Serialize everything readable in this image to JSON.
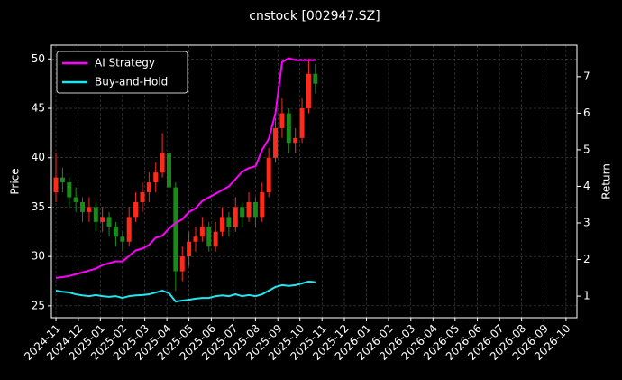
{
  "chart_data": {
    "type": "candlestick",
    "title": "cnstock [002947.SZ]",
    "ylabel": "Price",
    "y2label": "Return",
    "x": [
      2024.833,
      2024.858,
      2024.883,
      2024.908,
      2024.933,
      2024.958,
      2024.983,
      2025.008,
      2025.033,
      2025.058,
      2025.083,
      2025.108,
      2025.133,
      2025.158,
      2025.183,
      2025.208,
      2025.233,
      2025.258,
      2025.283,
      2025.308,
      2025.333,
      2025.358,
      2025.383,
      2025.408,
      2025.433,
      2025.458,
      2025.483,
      2025.508,
      2025.533,
      2025.558,
      2025.583,
      2025.608,
      2025.633,
      2025.658,
      2025.683,
      2025.708,
      2025.733,
      2025.758,
      2025.783,
      2025.808
    ],
    "open": [
      36.5,
      38,
      37.5,
      36,
      35.5,
      34.5,
      35,
      33.5,
      34,
      33,
      32,
      31.5,
      34,
      35.5,
      36.5,
      37.5,
      38.5,
      40.5,
      37,
      28.5,
      30,
      31.5,
      32,
      33,
      31,
      32.5,
      34,
      33,
      35,
      34,
      35.5,
      34,
      36.5,
      40,
      43,
      44.5,
      41.5,
      42,
      45,
      48.5
    ],
    "high": [
      40.5,
      39,
      38,
      37,
      36,
      36,
      35.5,
      35,
      34.5,
      33.5,
      32.5,
      35,
      36.5,
      37.5,
      38.5,
      39.5,
      42.5,
      41,
      37.5,
      31,
      32.5,
      33,
      34,
      33.5,
      33.5,
      35,
      34.5,
      36,
      35.5,
      36.5,
      36,
      37.5,
      41,
      44,
      46,
      45,
      43,
      46,
      50,
      49.5
    ],
    "low": [
      35.5,
      36.5,
      35,
      34.5,
      33.5,
      33.5,
      32.5,
      32.5,
      32,
      31,
      30.5,
      31,
      33.5,
      34.5,
      35.5,
      36.5,
      38,
      35.5,
      26.5,
      27.5,
      29,
      30.5,
      31.5,
      30.5,
      30.5,
      32,
      32,
      32.5,
      33,
      33.5,
      33,
      33.5,
      36,
      39.5,
      42,
      40.5,
      40.5,
      41.5,
      44.5,
      46.5
    ],
    "close": [
      38,
      37.5,
      36,
      35.5,
      34.5,
      35,
      33.5,
      34,
      33,
      32,
      31.5,
      34,
      35.5,
      36.5,
      37.5,
      38.5,
      40.5,
      37,
      28.5,
      30,
      31.5,
      32,
      33,
      31,
      32.5,
      34,
      33,
      35,
      34,
      35.5,
      34,
      36.5,
      40,
      43,
      44.5,
      41.5,
      42,
      45,
      48.5,
      47.5
    ],
    "up_color": "#ff2a1a",
    "down_color": "#1a8a1a",
    "series": [
      {
        "name": "AI Strategy",
        "color": "#ff00ff",
        "axis": "y2",
        "values": [
          1.5,
          1.52,
          1.55,
          1.6,
          1.65,
          1.7,
          1.75,
          1.85,
          1.9,
          1.95,
          1.95,
          2.1,
          2.25,
          2.3,
          2.4,
          2.6,
          2.65,
          2.85,
          3.0,
          3.1,
          3.3,
          3.4,
          3.6,
          3.7,
          3.8,
          3.9,
          4.0,
          4.2,
          4.4,
          4.5,
          4.55,
          5.0,
          5.3,
          6.0,
          7.4,
          7.5,
          7.45,
          7.45,
          7.45,
          7.45
        ]
      },
      {
        "name": "Buy-and-Hold",
        "color": "#22e5f0",
        "axis": "y2",
        "values": [
          1.15,
          1.12,
          1.1,
          1.05,
          1.02,
          1.0,
          1.03,
          1.0,
          0.98,
          1.0,
          0.95,
          1.0,
          1.02,
          1.03,
          1.05,
          1.1,
          1.15,
          1.08,
          0.85,
          0.88,
          0.9,
          0.93,
          0.95,
          0.95,
          1.0,
          1.02,
          1.0,
          1.05,
          1.0,
          1.03,
          1.0,
          1.05,
          1.15,
          1.25,
          1.3,
          1.28,
          1.3,
          1.35,
          1.4,
          1.38
        ]
      }
    ],
    "xlim": [
      2024.816,
      2026.791
    ],
    "ylim": [
      23.8,
      51.4
    ],
    "y2lim": [
      0.41,
      7.86
    ],
    "yticks": [
      25,
      30,
      35,
      40,
      45,
      50
    ],
    "y2ticks": [
      1,
      2,
      3,
      4,
      5,
      6,
      7
    ],
    "xticks": [
      {
        "value": 2024.833,
        "label": "2024-11"
      },
      {
        "value": 2024.917,
        "label": "2024-12"
      },
      {
        "value": 2025.0,
        "label": "2025-01"
      },
      {
        "value": 2025.083,
        "label": "2025-02"
      },
      {
        "value": 2025.167,
        "label": "2025-03"
      },
      {
        "value": 2025.25,
        "label": "2025-04"
      },
      {
        "value": 2025.333,
        "label": "2025-05"
      },
      {
        "value": 2025.417,
        "label": "2025-06"
      },
      {
        "value": 2025.5,
        "label": "2025-07"
      },
      {
        "value": 2025.583,
        "label": "2025-08"
      },
      {
        "value": 2025.667,
        "label": "2025-09"
      },
      {
        "value": 2025.75,
        "label": "2025-10"
      },
      {
        "value": 2025.833,
        "label": "2025-11"
      },
      {
        "value": 2025.917,
        "label": "2025-12"
      },
      {
        "value": 2026.0,
        "label": "2026-01"
      },
      {
        "value": 2026.083,
        "label": "2026-02"
      },
      {
        "value": 2026.167,
        "label": "2026-03"
      },
      {
        "value": 2026.25,
        "label": "2026-04"
      },
      {
        "value": 2026.333,
        "label": "2026-05"
      },
      {
        "value": 2026.417,
        "label": "2026-06"
      },
      {
        "value": 2026.5,
        "label": "2026-07"
      },
      {
        "value": 2026.583,
        "label": "2026-08"
      },
      {
        "value": 2026.667,
        "label": "2026-09"
      },
      {
        "value": 2026.75,
        "label": "2026-10"
      }
    ],
    "grid": true,
    "legend": "upper left"
  }
}
